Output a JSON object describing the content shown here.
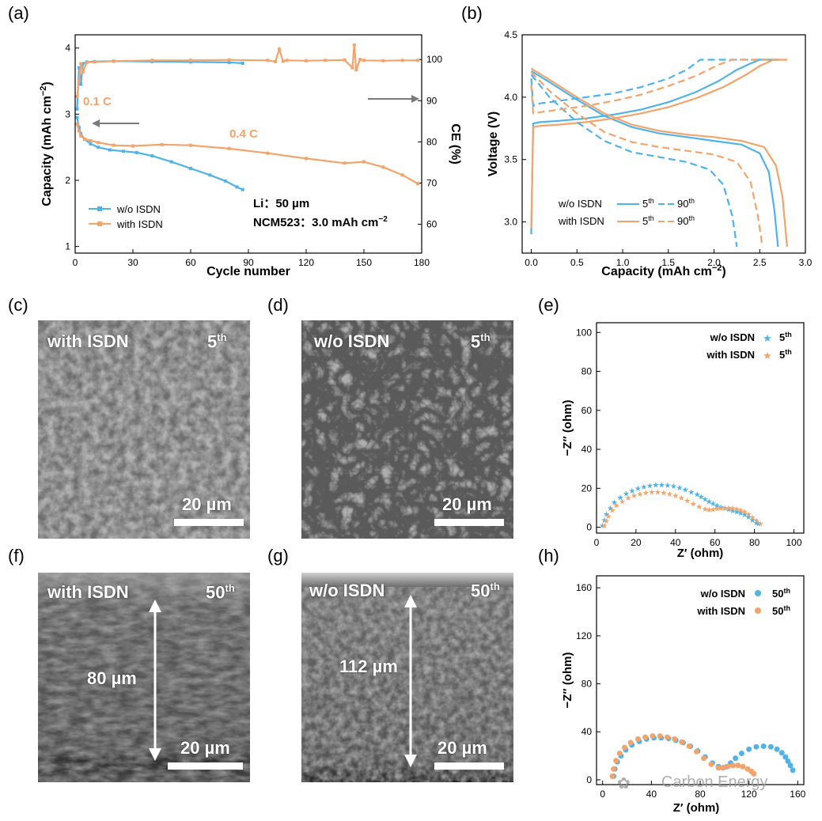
{
  "panel_labels": {
    "a": "(a)",
    "b": "(b)",
    "c": "(c)",
    "d": "(d)",
    "e": "(e)",
    "f": "(f)",
    "g": "(g)",
    "h": "(h)"
  },
  "sem": {
    "c": {
      "label": "with ISDN",
      "cycle": "5",
      "sup": "th",
      "scale": "20 µm"
    },
    "d": {
      "label": "w/o ISDN",
      "cycle": "5",
      "sup": "th",
      "scale": "20 µm"
    },
    "f": {
      "label": "with ISDN",
      "cycle": "50",
      "sup": "th",
      "scale": "20 µm",
      "thickness": "80 µm"
    },
    "g": {
      "label": "w/o ISDN",
      "cycle": "50",
      "sup": "th",
      "scale": "20 µm",
      "thickness": "112 µm"
    }
  },
  "watermark": "Carbon Energy",
  "colors": {
    "blue": "#4fb3ea",
    "orange": "#f2a46b",
    "gray": "#777777"
  },
  "chart_data": [
    {
      "id": "a",
      "type": "line",
      "xlabel": "Cycle number",
      "ylabel": "Capacity (mAh cm",
      "ylabel_sup": "−2",
      "ylabel_end": ")",
      "y2label": "CE (%)",
      "xlim": [
        0,
        180
      ],
      "ylim": [
        0.9,
        4.2
      ],
      "y2lim": [
        53,
        106
      ],
      "xticks": [
        0,
        30,
        60,
        90,
        120,
        150,
        180
      ],
      "yticks": [
        1,
        2,
        3,
        4
      ],
      "y2ticks": [
        60,
        70,
        80,
        90,
        100
      ],
      "annotations": [
        "0.1 C",
        "0.4 C",
        "Li：50 µm",
        "NCM523：3.0 mAh cm",
        "−2"
      ],
      "legend": [
        "w/o ISDN",
        "with ISDN"
      ],
      "series": [
        {
          "name": "w/o ISDN",
          "axis": "capacity",
          "color": "#4fb3ea",
          "x": [
            1,
            2,
            3,
            5,
            8,
            12,
            18,
            25,
            32,
            40,
            50,
            60,
            70,
            78,
            84,
            87
          ],
          "y": [
            2.95,
            2.8,
            2.7,
            2.62,
            2.55,
            2.5,
            2.46,
            2.44,
            2.42,
            2.37,
            2.28,
            2.18,
            2.08,
            1.99,
            1.9,
            1.86
          ]
        },
        {
          "name": "with ISDN",
          "axis": "capacity",
          "color": "#f2a46b",
          "x": [
            1,
            2,
            3,
            5,
            8,
            12,
            20,
            30,
            45,
            60,
            80,
            100,
            120,
            140,
            150,
            160,
            170,
            178
          ],
          "y": [
            2.85,
            2.75,
            2.67,
            2.62,
            2.6,
            2.57,
            2.53,
            2.52,
            2.54,
            2.53,
            2.48,
            2.41,
            2.33,
            2.26,
            2.28,
            2.2,
            2.08,
            1.95
          ]
        },
        {
          "name": "w/o ISDN",
          "axis": "ce",
          "color": "#4fb3ea",
          "x": [
            1,
            2,
            3,
            4,
            6,
            10,
            20,
            40,
            60,
            80,
            87
          ],
          "y": [
            88,
            98,
            94,
            99,
            99.4,
            99.5,
            99.6,
            99.5,
            99.4,
            99.3,
            99.1
          ]
        },
        {
          "name": "with ISDN",
          "axis": "ce",
          "color": "#f2a46b",
          "x": [
            1,
            2,
            3,
            4,
            6,
            10,
            20,
            40,
            60,
            80,
            100,
            104,
            106,
            108,
            110,
            120,
            130,
            140,
            144,
            145,
            146,
            148,
            150,
            160,
            170,
            178
          ],
          "y": [
            91,
            95,
            99,
            97,
            99.3,
            99.4,
            99.6,
            99.8,
            99.8,
            99.9,
            99.8,
            99.5,
            102.5,
            99.6,
            99.8,
            99.7,
            99.8,
            99.9,
            98,
            103.5,
            97.5,
            100,
            99.8,
            99.7,
            99.8,
            99.8
          ]
        }
      ]
    },
    {
      "id": "b",
      "type": "line",
      "xlabel": "Capacity (mAh cm",
      "xlabel_sup": "−2",
      "xlabel_end": ")",
      "ylabel": "Voltage (V)",
      "xlim": [
        -0.1,
        3.0
      ],
      "ylim": [
        2.75,
        4.5
      ],
      "xticks": [
        0.0,
        0.5,
        1.0,
        1.5,
        2.0,
        2.5,
        3.0
      ],
      "yticks": [
        3.0,
        3.5,
        4.0,
        4.5
      ],
      "legend": {
        "rows": [
          "w/o ISDN",
          "with ISDN"
        ],
        "cols": [
          "5",
          "90"
        ],
        "sup": "th"
      },
      "series": [
        {
          "name": "w/o ISDN 5th charge",
          "color": "#4fb3ea",
          "dash": false,
          "x": [
            0,
            0.02,
            0.1,
            0.3,
            0.6,
            0.9,
            1.2,
            1.5,
            1.8,
            2.05,
            2.25,
            2.4,
            2.5,
            2.7
          ],
          "y": [
            2.9,
            3.79,
            3.8,
            3.81,
            3.83,
            3.86,
            3.9,
            3.96,
            4.04,
            4.13,
            4.22,
            4.27,
            4.3,
            4.3
          ]
        },
        {
          "name": "w/o ISDN 5th discharge",
          "color": "#4fb3ea",
          "dash": false,
          "x": [
            0,
            0.2,
            0.5,
            0.8,
            1.1,
            1.4,
            1.7,
            2.0,
            2.3,
            2.5,
            2.6,
            2.66,
            2.7
          ],
          "y": [
            4.21,
            4.12,
            3.98,
            3.85,
            3.76,
            3.71,
            3.68,
            3.65,
            3.62,
            3.55,
            3.4,
            3.1,
            2.8
          ]
        },
        {
          "name": "with ISDN 5th charge",
          "color": "#f2a46b",
          "dash": false,
          "x": [
            0,
            0.02,
            0.1,
            0.3,
            0.6,
            0.9,
            1.2,
            1.5,
            1.8,
            2.1,
            2.35,
            2.5,
            2.65,
            2.8
          ],
          "y": [
            2.95,
            3.76,
            3.77,
            3.78,
            3.8,
            3.83,
            3.87,
            3.92,
            3.99,
            4.08,
            4.18,
            4.25,
            4.3,
            4.3
          ]
        },
        {
          "name": "with ISDN 5th discharge",
          "color": "#f2a46b",
          "dash": false,
          "x": [
            0,
            0.2,
            0.5,
            0.8,
            1.1,
            1.4,
            1.7,
            2.0,
            2.3,
            2.55,
            2.68,
            2.75,
            2.8
          ],
          "y": [
            4.23,
            4.14,
            4.0,
            3.87,
            3.78,
            3.73,
            3.7,
            3.68,
            3.65,
            3.6,
            3.45,
            3.2,
            2.8
          ]
        },
        {
          "name": "w/o ISDN 90th charge",
          "color": "#4fb3ea",
          "dash": true,
          "x": [
            0,
            0.02,
            0.1,
            0.3,
            0.6,
            0.9,
            1.2,
            1.5,
            1.7,
            1.85,
            2.0,
            2.7
          ],
          "y": [
            4.15,
            3.93,
            3.95,
            3.97,
            4.0,
            4.03,
            4.08,
            4.15,
            4.22,
            4.3,
            4.3,
            4.3
          ]
        },
        {
          "name": "w/o ISDN 90th discharge",
          "color": "#4fb3ea",
          "dash": true,
          "x": [
            0,
            0.2,
            0.5,
            0.8,
            1.1,
            1.4,
            1.7,
            1.95,
            2.1,
            2.2,
            2.25
          ],
          "y": [
            4.18,
            4.0,
            3.8,
            3.65,
            3.56,
            3.52,
            3.48,
            3.42,
            3.3,
            3.05,
            2.8
          ]
        },
        {
          "name": "with ISDN 90th charge",
          "color": "#f2a46b",
          "dash": true,
          "x": [
            0,
            0.02,
            0.1,
            0.3,
            0.6,
            0.9,
            1.2,
            1.5,
            1.8,
            2.05,
            2.2,
            2.8
          ],
          "y": [
            4.1,
            3.87,
            3.88,
            3.9,
            3.93,
            3.97,
            4.02,
            4.09,
            4.17,
            4.26,
            4.3,
            4.3
          ]
        },
        {
          "name": "with ISDN 90th discharge",
          "color": "#f2a46b",
          "dash": true,
          "x": [
            0,
            0.2,
            0.5,
            0.8,
            1.1,
            1.4,
            1.7,
            2.0,
            2.25,
            2.4,
            2.48,
            2.53
          ],
          "y": [
            4.2,
            4.05,
            3.87,
            3.72,
            3.64,
            3.6,
            3.57,
            3.54,
            3.48,
            3.32,
            3.05,
            2.8
          ]
        }
      ]
    },
    {
      "id": "e",
      "type": "scatter",
      "xlabel": "Z′ (ohm)",
      "ylabel": "−Z′′ (ohm)",
      "xlim": [
        0,
        105
      ],
      "ylim": [
        -3,
        105
      ],
      "xticks": [
        0,
        20,
        40,
        60,
        80,
        100
      ],
      "yticks": [
        0,
        20,
        40,
        60,
        80,
        100
      ],
      "legend": [
        {
          "name": "w/o ISDN",
          "cycle": "5",
          "sup": "th"
        },
        {
          "name": "with ISDN",
          "cycle": "5",
          "sup": "th"
        }
      ],
      "series": [
        {
          "name": "w/o ISDN",
          "color": "#4fb3ea",
          "marker": "star",
          "x": [
            3,
            4,
            5,
            7,
            9,
            12,
            15,
            18,
            21,
            24,
            27,
            30,
            33,
            36,
            39,
            42,
            45,
            48,
            51,
            53,
            55,
            57,
            59,
            61,
            63,
            65,
            67,
            69,
            71,
            73,
            75,
            77,
            79,
            81,
            82
          ],
          "y": [
            1,
            4,
            7,
            10,
            13,
            15.5,
            17.5,
            19,
            20.2,
            21,
            21.6,
            21.9,
            22,
            21.8,
            21.3,
            20.6,
            19.6,
            18.4,
            17,
            15.8,
            14.6,
            13.5,
            12.5,
            11.5,
            10.7,
            10,
            9.3,
            8.8,
            8.2,
            7.6,
            6.8,
            5.6,
            4,
            2.5,
            2
          ]
        },
        {
          "name": "with ISDN",
          "color": "#f2a46b",
          "marker": "star",
          "x": [
            4,
            5,
            6,
            8,
            10,
            13,
            16,
            19,
            22,
            25,
            28,
            31,
            34,
            37,
            40,
            43,
            46,
            49,
            52,
            55,
            57,
            59,
            61,
            63,
            65,
            67,
            69,
            71,
            73,
            75,
            77,
            79,
            81,
            83
          ],
          "y": [
            1,
            3.5,
            6,
            9,
            11.5,
            13.5,
            15.2,
            16.5,
            17.4,
            18,
            18.3,
            18.3,
            18,
            17.4,
            16.5,
            15.3,
            13.8,
            12.3,
            10.8,
            9.5,
            9.2,
            9.3,
            9.7,
            10,
            10.2,
            10.2,
            10,
            9.6,
            9,
            8.2,
            7,
            5.4,
            3.6,
            2
          ]
        }
      ]
    },
    {
      "id": "h",
      "type": "scatter",
      "xlabel": "Z′ (ohm)",
      "ylabel": "−Z′′ (ohm)",
      "xlim": [
        -5,
        165
      ],
      "ylim": [
        -4,
        170
      ],
      "xticks": [
        0,
        40,
        80,
        120,
        160
      ],
      "yticks": [
        0,
        40,
        80,
        120,
        160
      ],
      "legend": [
        {
          "name": "w/o ISDN",
          "cycle": "50",
          "sup": "th"
        },
        {
          "name": "with ISDN",
          "cycle": "50",
          "sup": "th"
        }
      ],
      "series": [
        {
          "name": "w/o ISDN",
          "color": "#4fb3ea",
          "marker": "circle",
          "x": [
            9,
            10,
            12,
            15,
            19,
            24,
            30,
            36,
            42,
            48,
            54,
            60,
            66,
            72,
            78,
            84,
            90,
            95,
            99,
            102,
            105,
            109,
            114,
            120,
            126,
            132,
            138,
            143,
            147,
            150,
            152,
            154,
            156
          ],
          "y": [
            3,
            9,
            15,
            20,
            25,
            29,
            32,
            34,
            35,
            35,
            34.5,
            33,
            31,
            28,
            24,
            19,
            14,
            11,
            10,
            11,
            14,
            18,
            22,
            25.5,
            27.5,
            28,
            27.5,
            25.5,
            22.5,
            19,
            15.5,
            12,
            8
          ]
        },
        {
          "name": "with ISDN",
          "color": "#f2a46b",
          "marker": "circle",
          "x": [
            8,
            9,
            11,
            14,
            18,
            23,
            29,
            35,
            41,
            47,
            53,
            59,
            65,
            71,
            77,
            83,
            89,
            95,
            99,
            103,
            107,
            111,
            115,
            119,
            122,
            124
          ],
          "y": [
            3,
            9,
            16,
            22,
            27,
            31,
            34,
            35.5,
            36.5,
            36.5,
            35.5,
            34,
            31.5,
            28,
            23.5,
            18,
            13,
            10,
            10.3,
            11.3,
            12,
            12,
            11,
            9,
            7,
            5
          ]
        }
      ]
    }
  ]
}
